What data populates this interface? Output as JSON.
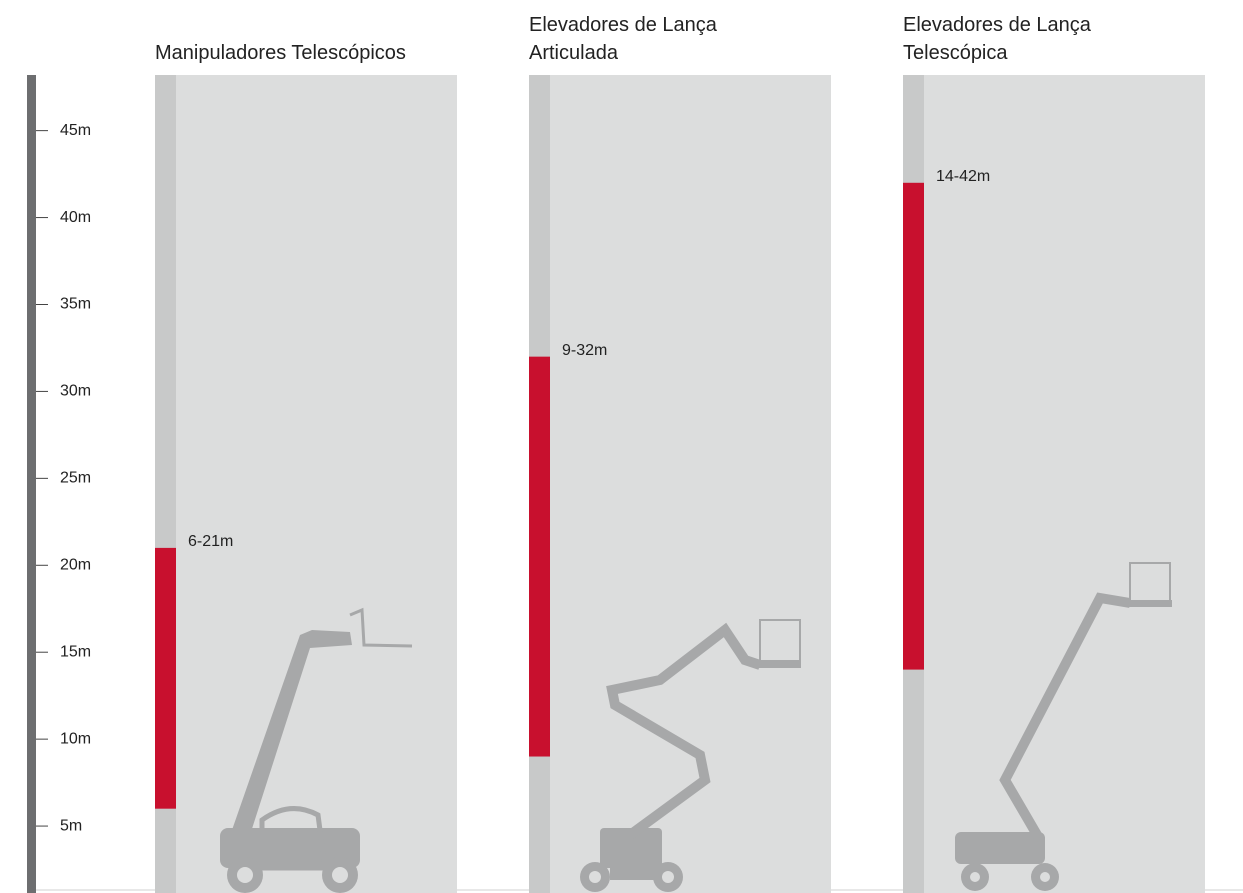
{
  "chart_data": {
    "type": "range",
    "categories": [
      "Manipuladores Telescópicos",
      "Elevadores de Lança Articulada",
      "Elevadores de Lança Telescópica"
    ],
    "values": [
      [
        6,
        21
      ],
      [
        9,
        32
      ],
      [
        14,
        42
      ]
    ],
    "value_labels": [
      "6-21m",
      "9-32m",
      "14-42m"
    ],
    "color": "#c8102e",
    "ylim": [
      1.15,
      48.2
    ],
    "yticks": [
      {
        "value": 5,
        "label": "5m"
      },
      {
        "value": 10,
        "label": "10m"
      },
      {
        "value": 15,
        "label": "15m"
      },
      {
        "value": 20,
        "label": "20m"
      },
      {
        "value": 25,
        "label": "25m"
      },
      {
        "value": 30,
        "label": "30m"
      },
      {
        "value": 35,
        "label": "35m"
      },
      {
        "value": 40,
        "label": "40m"
      },
      {
        "value": 45,
        "label": "45m"
      }
    ]
  }
}
